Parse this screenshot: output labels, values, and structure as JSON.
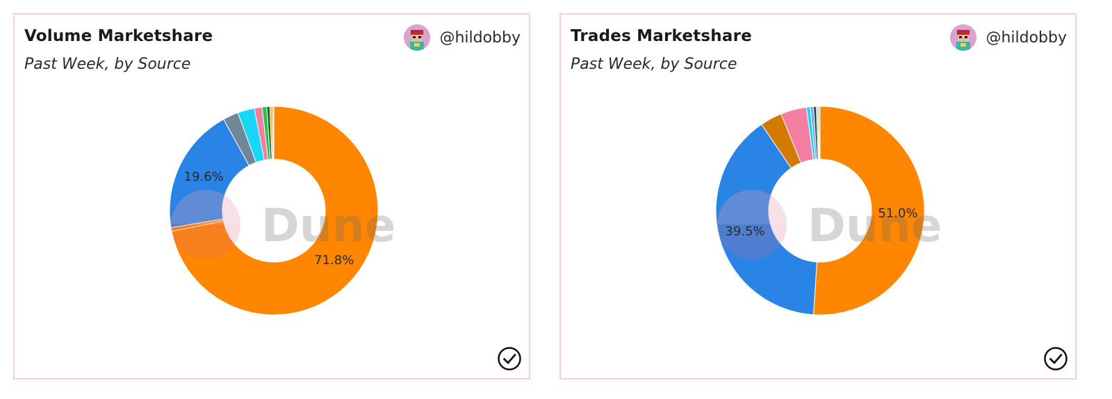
{
  "panels": [
    {
      "title": "Volume Marketshare",
      "subtitle": "Past Week, by Source",
      "author": "@hildobby",
      "avatar_icon": "pixel-avatar-icon",
      "watermark": "Dune",
      "status_icon": "check-circle-icon"
    },
    {
      "title": "Trades Marketshare",
      "subtitle": "Past Week, by Source",
      "author": "@hildobby",
      "avatar_icon": "pixel-avatar-icon",
      "watermark": "Dune",
      "status_icon": "check-circle-icon"
    }
  ],
  "chart_data": [
    {
      "type": "pie",
      "donut": true,
      "title": "Volume Marketshare",
      "subtitle": "Past Week, by Source",
      "values": [
        71.8,
        0.6,
        19.6,
        2.4,
        2.6,
        1.2,
        0.7,
        0.5,
        0.3,
        0.2,
        0.1
      ],
      "colors": [
        "#ff8600",
        "#ff8600",
        "#2a84e6",
        "#6e8799",
        "#16d7f5",
        "#f47ea1",
        "#27c24c",
        "#1f6a3a",
        "#f7a600",
        "#7f7f7f",
        "#bfe3ff"
      ],
      "labels_shown": [
        "71.8%",
        "19.6%"
      ],
      "label_index": [
        0,
        2
      ]
    },
    {
      "type": "pie",
      "donut": true,
      "title": "Trades Marketshare",
      "subtitle": "Past Week, by Source",
      "values": [
        51.0,
        39.5,
        3.4,
        4.0,
        0.6,
        0.5,
        0.4,
        0.2,
        0.2,
        0.2
      ],
      "colors": [
        "#ff8600",
        "#2a84e6",
        "#d37a05",
        "#f47ea1",
        "#16d7f5",
        "#7aa6f5",
        "#1f3f2a",
        "#5ac26b",
        "#a0a0a0",
        "#58e07e"
      ],
      "labels_shown": [
        "51.0%",
        "39.5%"
      ],
      "label_index": [
        0,
        1
      ]
    }
  ]
}
